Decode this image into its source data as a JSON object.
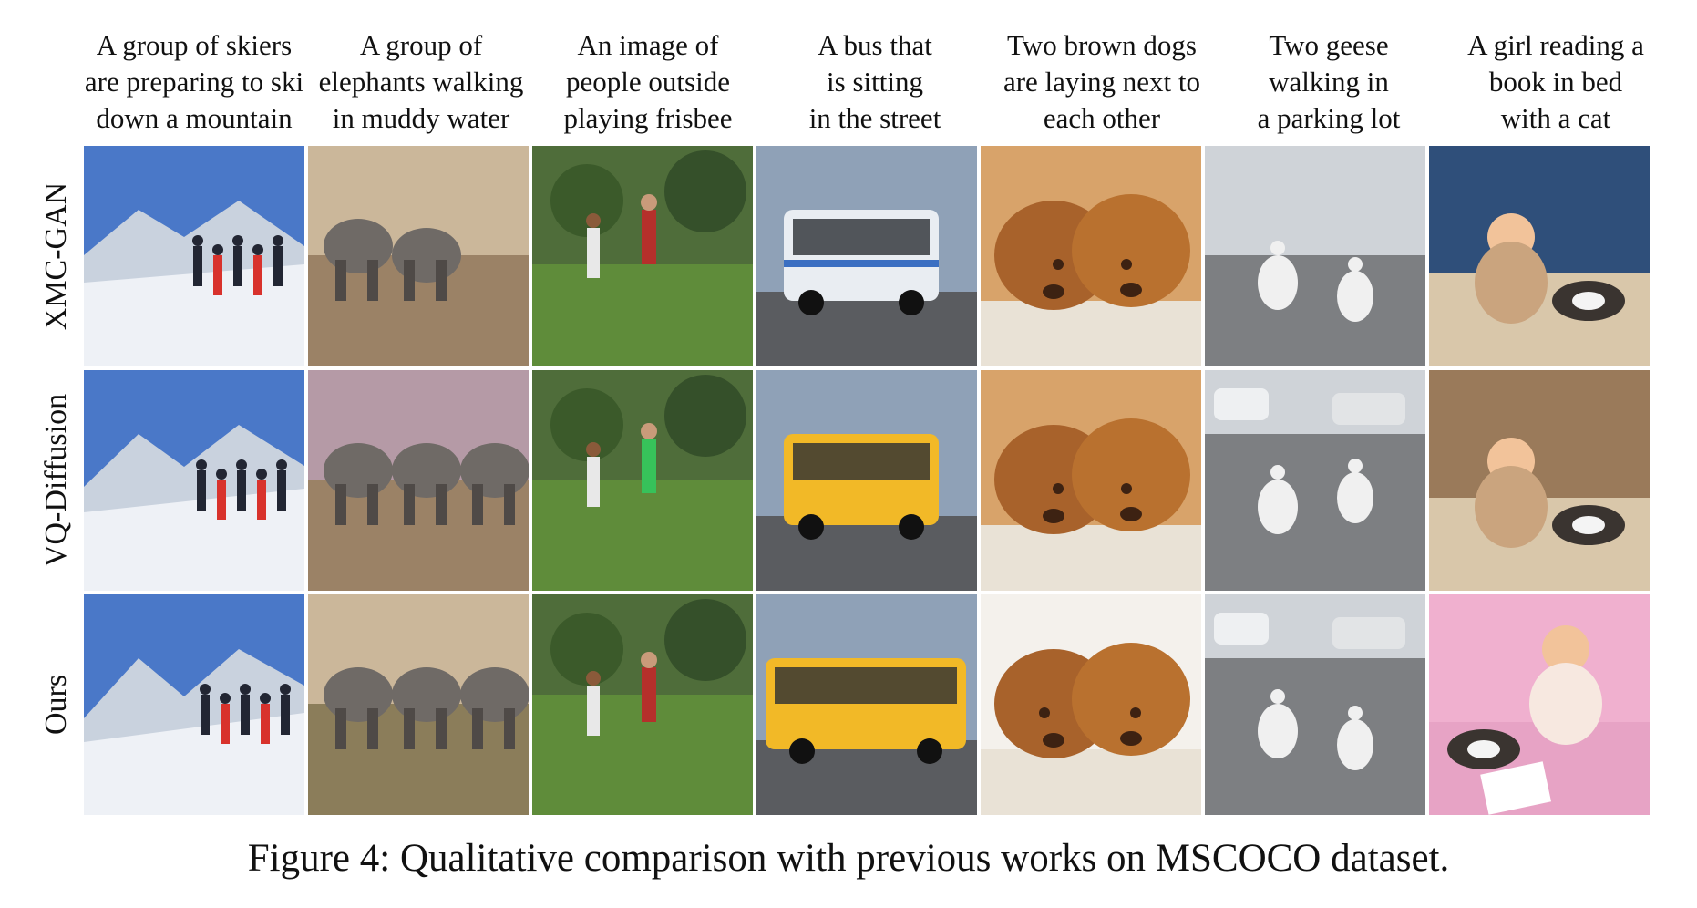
{
  "prompts": [
    {
      "lines": [
        "A group of skiers",
        "are preparing to ski",
        "down a mountain"
      ]
    },
    {
      "lines": [
        "A group of",
        "elephants walking",
        "in muddy water"
      ]
    },
    {
      "lines": [
        "An image of",
        "people outside",
        "playing frisbee"
      ]
    },
    {
      "lines": [
        "A bus that",
        "is sitting",
        "in the street"
      ]
    },
    {
      "lines": [
        "Two brown dogs",
        "are laying next to",
        "each other"
      ]
    },
    {
      "lines": [
        "Two geese",
        "walking in",
        "a parking lot"
      ]
    },
    {
      "lines": [
        "A girl reading a",
        "book in bed",
        "with a cat"
      ]
    }
  ],
  "rows": [
    {
      "label": "XMC-GAN"
    },
    {
      "label": "VQ-Diffusion"
    },
    {
      "label": "Ours"
    }
  ],
  "caption": "Figure 4: Qualitative comparison with previous works on MSCOCO dataset.",
  "palettes": {
    "ski": {
      "sky": "#4a78c8",
      "ground": "#eef1f6",
      "accent": "#d8322c",
      "dark": "#222633"
    },
    "elephant": {
      "sky": "#cbb79a",
      "ground": "#9b8266",
      "accent": "#6f6a66",
      "dark": "#4f4a47"
    },
    "frisbee": {
      "sky": "#4f6d3a",
      "ground": "#5f8c3a",
      "accent": "#e8e8e8",
      "dark": "#2c2c2c"
    },
    "bus": {
      "sky": "#8fa1b7",
      "ground": "#5a5c60",
      "accent": "#f2b927",
      "dark": "#2a2e33"
    },
    "dogs": {
      "sky": "#d8a36a",
      "ground": "#e9e2d6",
      "accent": "#a8622b",
      "dark": "#3d2212"
    },
    "geese": {
      "sky": "#cfd3d8",
      "ground": "#7d7f82",
      "accent": "#f0f0f0",
      "dark": "#2f3133"
    },
    "girl": {
      "sky": "#7a6a58",
      "ground": "#e7a3c5",
      "accent": "#f2c39a",
      "dark": "#3a2a22"
    }
  }
}
